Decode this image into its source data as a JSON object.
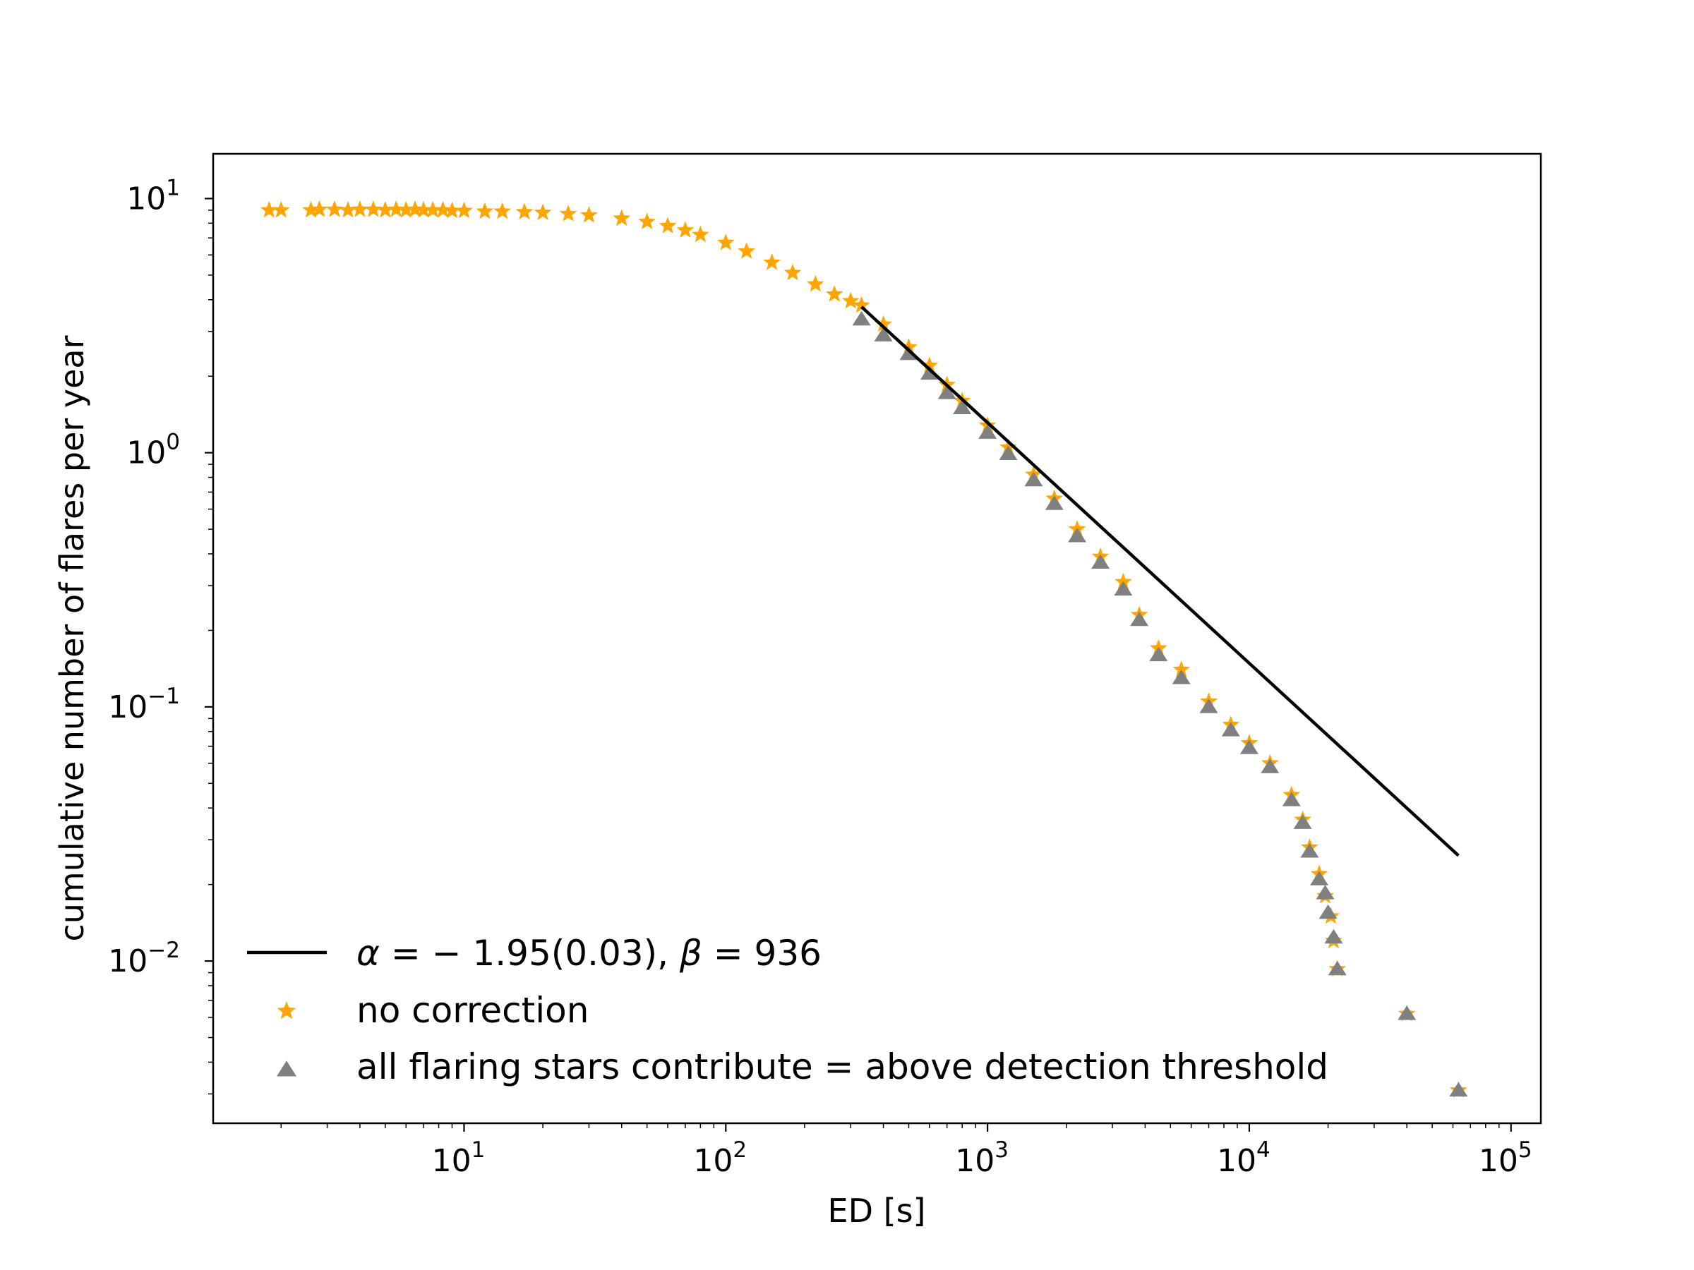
{
  "chart_data": {
    "type": "scatter",
    "xlabel": "ED [s]",
    "ylabel": "cumulative number of flares per year",
    "xscale": "log",
    "yscale": "log",
    "xlim": [
      1.1,
      130000
    ],
    "ylim": [
      0.0023,
      15
    ],
    "grid": false,
    "legend_position": "lower-left",
    "x_ticks": [
      {
        "base": "10",
        "exp": "1",
        "value": 10
      },
      {
        "base": "10",
        "exp": "2",
        "value": 100
      },
      {
        "base": "10",
        "exp": "3",
        "value": 1000
      },
      {
        "base": "10",
        "exp": "4",
        "value": 10000
      },
      {
        "base": "10",
        "exp": "5",
        "value": 100000
      }
    ],
    "y_ticks": [
      {
        "base": "10",
        "exp": "1",
        "value": 10
      },
      {
        "base": "10",
        "exp": "0",
        "value": 1
      },
      {
        "base": "10",
        "exp": "−1",
        "value": 0.1
      },
      {
        "base": "10",
        "exp": "−2",
        "value": 0.01
      }
    ],
    "series": [
      {
        "name": "no correction",
        "marker": "star",
        "color": "#ffa500",
        "points": [
          [
            1.8,
            9.0
          ],
          [
            2.0,
            9.0
          ],
          [
            2.6,
            9.0
          ],
          [
            2.8,
            9.05
          ],
          [
            3.2,
            9.05
          ],
          [
            3.6,
            9.0
          ],
          [
            4.0,
            9.05
          ],
          [
            4.5,
            9.05
          ],
          [
            5.0,
            9.0
          ],
          [
            5.5,
            9.05
          ],
          [
            6.0,
            9.0
          ],
          [
            6.5,
            9.05
          ],
          [
            7.0,
            9.0
          ],
          [
            7.6,
            9.0
          ],
          [
            8.3,
            9.0
          ],
          [
            9.0,
            8.95
          ],
          [
            10,
            8.95
          ],
          [
            12,
            8.9
          ],
          [
            14,
            8.9
          ],
          [
            17,
            8.85
          ],
          [
            20,
            8.8
          ],
          [
            25,
            8.7
          ],
          [
            30,
            8.6
          ],
          [
            40,
            8.35
          ],
          [
            50,
            8.1
          ],
          [
            60,
            7.8
          ],
          [
            70,
            7.5
          ],
          [
            80,
            7.2
          ],
          [
            100,
            6.7
          ],
          [
            120,
            6.2
          ],
          [
            150,
            5.6
          ],
          [
            180,
            5.1
          ],
          [
            220,
            4.6
          ],
          [
            260,
            4.2
          ],
          [
            300,
            3.95
          ],
          [
            330,
            3.8
          ],
          [
            400,
            3.2
          ],
          [
            500,
            2.6
          ],
          [
            600,
            2.2
          ],
          [
            700,
            1.85
          ],
          [
            800,
            1.6
          ],
          [
            1000,
            1.28
          ],
          [
            1200,
            1.05
          ],
          [
            1500,
            0.82
          ],
          [
            1800,
            0.66
          ],
          [
            2200,
            0.5
          ],
          [
            2700,
            0.39
          ],
          [
            3300,
            0.31
          ],
          [
            3800,
            0.23
          ],
          [
            4500,
            0.17
          ],
          [
            5500,
            0.14
          ],
          [
            7000,
            0.105
          ],
          [
            8500,
            0.085
          ],
          [
            10000,
            0.072
          ],
          [
            12000,
            0.06
          ],
          [
            14500,
            0.045
          ],
          [
            16000,
            0.036
          ],
          [
            17000,
            0.028
          ],
          [
            18500,
            0.022
          ],
          [
            19500,
            0.018
          ],
          [
            20500,
            0.015
          ],
          [
            21000,
            0.012
          ],
          [
            21700,
            0.0093
          ],
          [
            40000,
            0.0062
          ],
          [
            63000,
            0.0031
          ]
        ]
      },
      {
        "name": "all flaring stars contribute = above detection threshold",
        "marker": "triangle",
        "color": "#808080",
        "points": [
          [
            330,
            3.35
          ],
          [
            400,
            2.9
          ],
          [
            500,
            2.45
          ],
          [
            600,
            2.05
          ],
          [
            700,
            1.72
          ],
          [
            800,
            1.5
          ],
          [
            1000,
            1.2
          ],
          [
            1200,
            0.99
          ],
          [
            1500,
            0.78
          ],
          [
            1800,
            0.63
          ],
          [
            2200,
            0.47
          ],
          [
            2700,
            0.37
          ],
          [
            3300,
            0.29
          ],
          [
            3800,
            0.22
          ],
          [
            4500,
            0.16
          ],
          [
            5500,
            0.13
          ],
          [
            7000,
            0.1
          ],
          [
            8500,
            0.081
          ],
          [
            10000,
            0.069
          ],
          [
            12000,
            0.058
          ],
          [
            14500,
            0.043
          ],
          [
            16000,
            0.035
          ],
          [
            17000,
            0.027
          ],
          [
            18500,
            0.021
          ],
          [
            19500,
            0.0185
          ],
          [
            20000,
            0.0155
          ],
          [
            21000,
            0.0124
          ],
          [
            21700,
            0.0093
          ],
          [
            40000,
            0.0062
          ],
          [
            63000,
            0.0031
          ]
        ]
      },
      {
        "name": "α = − 1.95(0.03), β = 936",
        "type": "line",
        "color": "#000000",
        "points": [
          [
            330,
            3.75
          ],
          [
            63000,
            0.026
          ]
        ]
      }
    ]
  },
  "legend": {
    "fit_alpha": "α",
    "fit_mid": " = − 1.95(0.03), ",
    "fit_beta": "β",
    "fit_end": " = 936",
    "no_correction": "no correction",
    "all_flaring": "all flaring stars contribute = above detection threshold"
  }
}
